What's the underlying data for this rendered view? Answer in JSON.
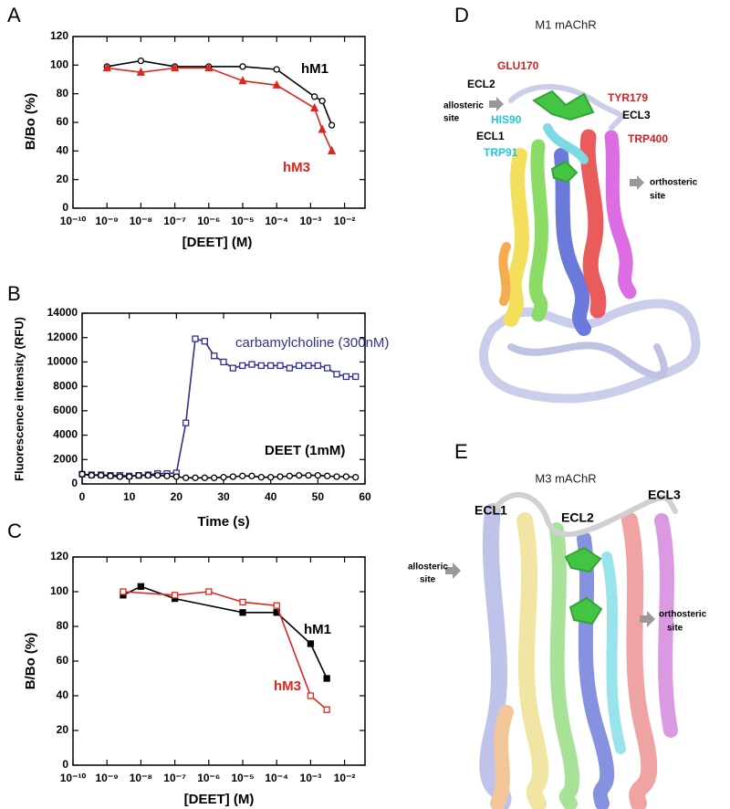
{
  "panel_labels": [
    "A",
    "B",
    "C",
    "D",
    "E"
  ],
  "chart_data": [
    {
      "type": "line",
      "xlabel": "[DEET] (M)",
      "ylabel": "B/Bo (%)",
      "log_x": true,
      "xlim": [
        1e-10,
        0.04
      ],
      "xticks": [
        {
          "value": 1e-10,
          "label": "10⁻¹⁰"
        },
        {
          "value": 1e-09,
          "label": "10⁻⁹"
        },
        {
          "value": 1e-08,
          "label": "10⁻⁸"
        },
        {
          "value": 1e-07,
          "label": "10⁻⁷"
        },
        {
          "value": 1e-06,
          "label": "10⁻⁶"
        },
        {
          "value": 1e-05,
          "label": "10⁻⁵"
        },
        {
          "value": 0.0001,
          "label": "10⁻⁴"
        },
        {
          "value": 0.001,
          "label": "10⁻³"
        },
        {
          "value": 0.01,
          "label": "10⁻²"
        }
      ],
      "ylim": [
        0,
        120
      ],
      "yticks": [
        0,
        20,
        40,
        60,
        80,
        100,
        120
      ],
      "annotations": [
        "hM1",
        "hM3"
      ],
      "series": [
        {
          "name": "hM1",
          "color": "#000000",
          "marker": "circle",
          "marker_fill": false,
          "x": [
            1e-09,
            1e-08,
            1e-07,
            1e-06,
            1e-05,
            0.0001,
            0.0013,
            0.0022,
            0.0042
          ],
          "values": [
            99,
            103,
            99,
            99,
            99,
            97,
            78,
            75,
            58
          ]
        },
        {
          "name": "hM3",
          "color": "#e0251b",
          "marker": "triangle",
          "marker_fill": true,
          "x": [
            1e-09,
            1e-08,
            1e-07,
            1e-06,
            1e-05,
            0.0001,
            0.0013,
            0.0022,
            0.0042
          ],
          "values": [
            98,
            95,
            98,
            98,
            89,
            86,
            70,
            55,
            40
          ]
        }
      ]
    },
    {
      "type": "line",
      "xlabel": "Time (s)",
      "ylabel": "Fluorescence intensity (RFU)",
      "log_x": false,
      "xlim": [
        0,
        60
      ],
      "xticks": [
        0,
        10,
        20,
        30,
        40,
        50,
        60
      ],
      "ylim": [
        0,
        14000
      ],
      "yticks": [
        0,
        2000,
        4000,
        6000,
        8000,
        10000,
        12000,
        14000
      ],
      "annotations": [
        "carbamylcholine (300nM)",
        "DEET (1mM)"
      ],
      "x": [
        0,
        2,
        4,
        6,
        8,
        10,
        12,
        14,
        16,
        18,
        20,
        22,
        24,
        26,
        28,
        30,
        32,
        34,
        36,
        38,
        40,
        42,
        44,
        46,
        48,
        50,
        52,
        54,
        56,
        58
      ],
      "series": [
        {
          "name": "carbamylcholine (300nM)",
          "color": "#2e3192",
          "marker": "square",
          "marker_fill": false,
          "values": [
            800,
            750,
            750,
            700,
            700,
            650,
            700,
            750,
            850,
            850,
            900,
            5000,
            11900,
            11700,
            10500,
            10000,
            9500,
            9700,
            9800,
            9700,
            9700,
            9700,
            9500,
            9700,
            9700,
            9700,
            9500,
            9000,
            8800,
            8800
          ]
        },
        {
          "name": "DEET (1mM)",
          "color": "#000000",
          "marker": "circle",
          "marker_fill": false,
          "values": [
            800,
            700,
            700,
            650,
            600,
            600,
            700,
            700,
            700,
            650,
            600,
            500,
            500,
            500,
            500,
            550,
            600,
            650,
            650,
            550,
            550,
            600,
            650,
            700,
            700,
            700,
            650,
            600,
            600,
            550
          ]
        }
      ]
    },
    {
      "type": "line",
      "xlabel": "[DEET] (M)",
      "ylabel": "B/Bo (%)",
      "log_x": true,
      "xlim": [
        1e-10,
        0.04
      ],
      "xticks": [
        {
          "value": 1e-10,
          "label": "10⁻¹⁰"
        },
        {
          "value": 1e-09,
          "label": "10⁻⁹"
        },
        {
          "value": 1e-08,
          "label": "10⁻⁸"
        },
        {
          "value": 1e-07,
          "label": "10⁻⁷"
        },
        {
          "value": 1e-06,
          "label": "10⁻⁶"
        },
        {
          "value": 1e-05,
          "label": "10⁻⁵"
        },
        {
          "value": 0.0001,
          "label": "10⁻⁴"
        },
        {
          "value": 0.001,
          "label": "10⁻³"
        },
        {
          "value": 0.01,
          "label": "10⁻²"
        }
      ],
      "ylim": [
        0,
        120
      ],
      "yticks": [
        0,
        20,
        40,
        60,
        80,
        100,
        120
      ],
      "annotations": [
        "hM1",
        "hM3"
      ],
      "series": [
        {
          "name": "hM1",
          "color": "#000000",
          "marker": "square",
          "marker_fill": true,
          "x": [
            3e-09,
            1e-08,
            1e-07,
            1e-05,
            0.0001,
            0.001,
            0.003
          ],
          "values": [
            98,
            103,
            96,
            88,
            88,
            70,
            50
          ]
        },
        {
          "name": "hM3",
          "color": "#e0251b",
          "marker": "square",
          "marker_fill": false,
          "x": [
            3e-09,
            1e-07,
            1e-06,
            1e-05,
            0.0001,
            0.001,
            0.003
          ],
          "values": [
            100,
            98,
            100,
            94,
            92,
            40,
            32
          ]
        }
      ]
    }
  ],
  "structures": [
    {
      "title": "M1 mAChR",
      "labels": [
        "ECL2",
        "GLU170",
        "allosteric",
        "site",
        "HIS90",
        "ECL1",
        "TRP91",
        "TYR179",
        "ECL3",
        "TRP400",
        "orthosteric",
        "site"
      ]
    },
    {
      "title": "M3 mAChR",
      "labels": [
        "ECL1",
        "ECL2",
        "ECL3",
        "allosteric",
        "site",
        "orthosteric",
        "site"
      ]
    }
  ]
}
